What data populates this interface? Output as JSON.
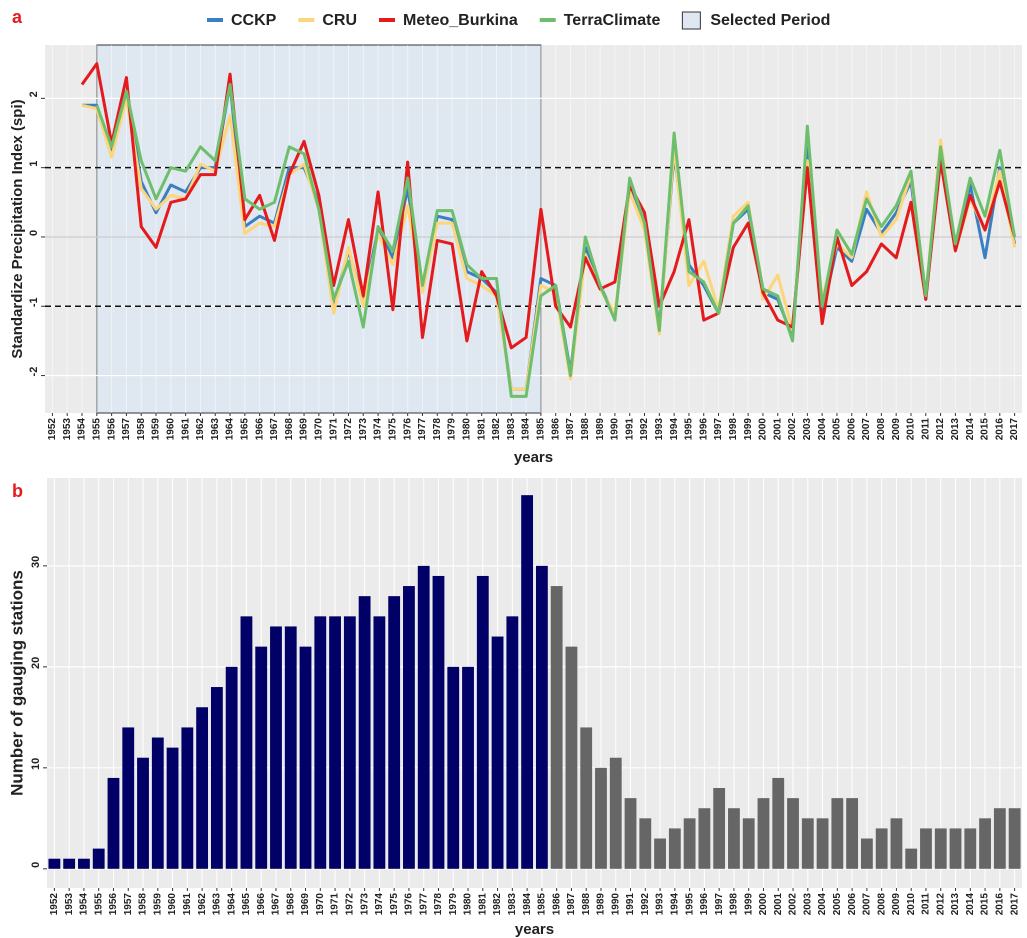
{
  "chart_data": [
    {
      "type": "line",
      "panel_label": "a",
      "y_label": "Standardize Precipitation Index (spi)",
      "x_label": "years",
      "categories": [
        "1952",
        "1953",
        "1954",
        "1955",
        "1956",
        "1957",
        "1958",
        "1959",
        "1960",
        "1961",
        "1962",
        "1963",
        "1964",
        "1965",
        "1966",
        "1967",
        "1968",
        "1969",
        "1970",
        "1971",
        "1972",
        "1973",
        "1974",
        "1975",
        "1976",
        "1977",
        "1978",
        "1979",
        "1980",
        "1981",
        "1982",
        "1983",
        "1984",
        "1985",
        "1986",
        "1987",
        "1988",
        "1989",
        "1990",
        "1991",
        "1992",
        "1993",
        "1994",
        "1995",
        "1996",
        "1997",
        "1998",
        "1999",
        "2000",
        "2001",
        "2002",
        "2003",
        "2004",
        "2005",
        "2006",
        "2007",
        "2008",
        "2009",
        "2010",
        "2011",
        "2012",
        "2013",
        "2014",
        "2015",
        "2016",
        "2017"
      ],
      "series": [
        {
          "name": "CCKP",
          "color": "#3a7fc1",
          "values": [
            null,
            null,
            1.9,
            1.9,
            1.2,
            2.1,
            0.8,
            0.35,
            0.75,
            0.65,
            1.0,
            1.0,
            2.2,
            0.15,
            0.3,
            0.2,
            1.0,
            1.0,
            0.5,
            -1.0,
            -0.2,
            -0.9,
            0.1,
            -0.3,
            0.7,
            -0.7,
            0.3,
            0.25,
            -0.5,
            -0.6,
            -0.8,
            -2.2,
            -2.2,
            -0.6,
            -0.7,
            -1.95,
            -0.15,
            -0.7,
            -1.15,
            0.75,
            0.2,
            -1.3,
            1.2,
            -0.4,
            -0.7,
            -1.1,
            0.2,
            0.4,
            -0.8,
            -0.9,
            -1.45,
            1.4,
            -1.1,
            -0.15,
            -0.35,
            0.4,
            0.05,
            0.35,
            0.8,
            -0.9,
            1.2,
            -0.15,
            0.75,
            -0.3,
            1.0,
            -0.1
          ]
        },
        {
          "name": "CRU",
          "color": "#fdd57a",
          "values": [
            null,
            null,
            1.9,
            1.85,
            1.15,
            2.0,
            0.7,
            0.4,
            0.6,
            0.55,
            1.05,
            0.95,
            1.75,
            0.05,
            0.2,
            0.15,
            0.9,
            1.05,
            0.4,
            -1.1,
            -0.15,
            -1.0,
            0.05,
            -0.4,
            0.45,
            -0.8,
            0.2,
            0.2,
            -0.6,
            -0.7,
            -0.85,
            -2.2,
            -2.2,
            -0.7,
            -0.8,
            -2.05,
            -0.25,
            -0.75,
            -1.1,
            0.65,
            0.1,
            -1.4,
            1.3,
            -0.7,
            -0.35,
            -1.05,
            0.3,
            0.5,
            -0.9,
            -0.55,
            -1.35,
            1.1,
            -0.9,
            -0.1,
            -0.3,
            0.65,
            0.0,
            0.25,
            0.9,
            -0.85,
            1.4,
            -0.2,
            0.55,
            0.1,
            0.95,
            -0.15
          ]
        },
        {
          "name": "Meteo_Burkina",
          "color": "#e41a1c",
          "values": [
            null,
            null,
            2.2,
            2.5,
            1.35,
            2.3,
            0.15,
            -0.15,
            0.5,
            0.55,
            0.9,
            0.9,
            2.35,
            0.25,
            0.6,
            -0.05,
            0.9,
            1.38,
            0.6,
            -0.7,
            0.25,
            -0.85,
            0.65,
            -1.05,
            1.08,
            -1.45,
            -0.05,
            -0.1,
            -1.5,
            -0.5,
            -0.85,
            -1.6,
            -1.45,
            0.4,
            -1.0,
            -1.3,
            -0.3,
            -0.75,
            -0.65,
            0.75,
            0.35,
            -1.0,
            -0.5,
            0.25,
            -1.2,
            -1.1,
            -0.15,
            0.2,
            -0.8,
            -1.2,
            -1.3,
            1.0,
            -1.25,
            0.0,
            -0.7,
            -0.5,
            -0.1,
            -0.3,
            0.5,
            -0.9,
            1.1,
            -0.2,
            0.6,
            0.1,
            0.8,
            0.0
          ]
        },
        {
          "name": "TerraClimate",
          "color": "#6dbf6d",
          "values": [
            null,
            null,
            null,
            1.9,
            1.3,
            2.1,
            1.1,
            0.55,
            1.0,
            0.95,
            1.3,
            1.1,
            2.2,
            0.55,
            0.4,
            0.5,
            1.3,
            1.2,
            0.4,
            -0.9,
            -0.35,
            -1.3,
            0.15,
            -0.2,
            0.85,
            -0.7,
            0.38,
            0.38,
            -0.4,
            -0.6,
            -0.6,
            -2.3,
            -2.3,
            -0.85,
            -0.7,
            -2.0,
            0.0,
            -0.7,
            -1.2,
            0.85,
            0.2,
            -1.35,
            1.5,
            -0.5,
            -0.65,
            -1.1,
            0.2,
            0.45,
            -0.75,
            -0.85,
            -1.5,
            1.6,
            -1.0,
            0.1,
            -0.25,
            0.55,
            0.15,
            0.45,
            0.95,
            -0.85,
            1.3,
            -0.1,
            0.85,
            0.3,
            1.25,
            0.0
          ]
        }
      ],
      "selected_period": [
        "1955",
        "1985"
      ],
      "selected_period_label": "Selected Period",
      "selected_color": "#dfe7f1",
      "hlines": [
        1,
        -1
      ],
      "ylim": [
        -2.54,
        2.77
      ],
      "yticks": [
        -2,
        -1,
        0,
        1,
        2
      ],
      "grid": true
    },
    {
      "type": "bar",
      "panel_label": "b",
      "y_label": "Number of gauging stations",
      "x_label": "years",
      "categories": [
        "1952",
        "1953",
        "1954",
        "1955",
        "1956",
        "1957",
        "1958",
        "1959",
        "1960",
        "1961",
        "1962",
        "1963",
        "1964",
        "1965",
        "1966",
        "1967",
        "1968",
        "1969",
        "1970",
        "1971",
        "1972",
        "1973",
        "1974",
        "1975",
        "1976",
        "1977",
        "1978",
        "1979",
        "1980",
        "1981",
        "1982",
        "1983",
        "1984",
        "1985",
        "1986",
        "1987",
        "1988",
        "1989",
        "1990",
        "1991",
        "1992",
        "1993",
        "1994",
        "1995",
        "1996",
        "1997",
        "1998",
        "1999",
        "2000",
        "2001",
        "2002",
        "2003",
        "2004",
        "2005",
        "2006",
        "2007",
        "2008",
        "2009",
        "2010",
        "2011",
        "2012",
        "2013",
        "2014",
        "2015",
        "2016",
        "2017"
      ],
      "values": [
        1,
        1,
        1,
        2,
        9,
        14,
        11,
        13,
        12,
        14,
        16,
        18,
        20,
        25,
        22,
        24,
        24,
        22,
        25,
        25,
        25,
        27,
        25,
        27,
        28,
        30,
        29,
        20,
        20,
        29,
        23,
        25,
        37,
        30,
        28,
        22,
        14,
        10,
        11,
        7,
        5,
        3,
        4,
        5,
        6,
        8,
        6,
        5,
        7,
        9,
        7,
        5,
        5,
        7,
        7,
        3,
        4,
        5,
        2,
        4,
        4,
        4,
        4,
        5,
        6,
        6
      ],
      "colors": [
        "#000066",
        "#666666"
      ],
      "highlight_until": "1985",
      "ylim": [
        -1.9,
        38.7
      ],
      "yticks": [
        0,
        10,
        20,
        30
      ],
      "grid": true
    }
  ]
}
